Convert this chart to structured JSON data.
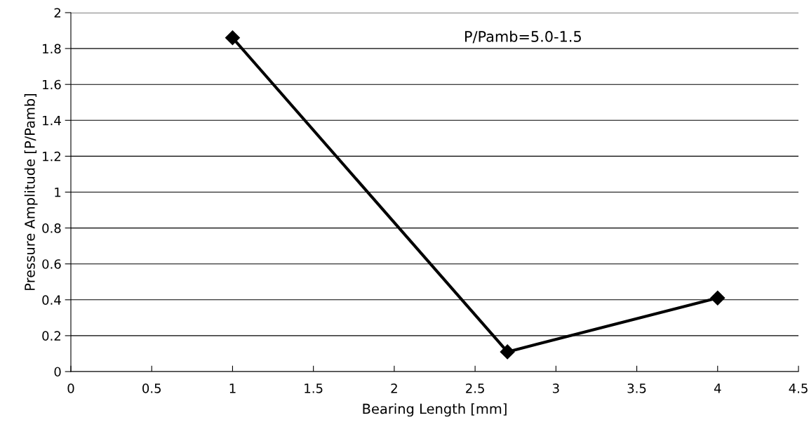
{
  "chart_data": {
    "type": "line",
    "xlabel": "Bearing Length [mm]",
    "ylabel": "Pressure Amplitude [P/Pamb]",
    "annotations": [
      "P/Pamb=5.0-1.5"
    ],
    "x": [
      1,
      2.7,
      4
    ],
    "series": [
      {
        "color": "#000000",
        "values": [
          1.86,
          0.11,
          0.41
        ]
      }
    ],
    "xlim": [
      0,
      4.5
    ],
    "xticks": [
      0,
      0.5,
      1,
      1.5,
      2,
      2.5,
      3,
      3.5,
      4,
      4.5
    ],
    "ylim": [
      0,
      2
    ],
    "yticks": [
      0,
      0.2,
      0.4,
      0.6,
      0.8,
      1,
      1.2,
      1.4,
      1.6,
      1.8,
      2
    ],
    "grid": "y",
    "marker": "diamond",
    "line_style": "solid"
  }
}
